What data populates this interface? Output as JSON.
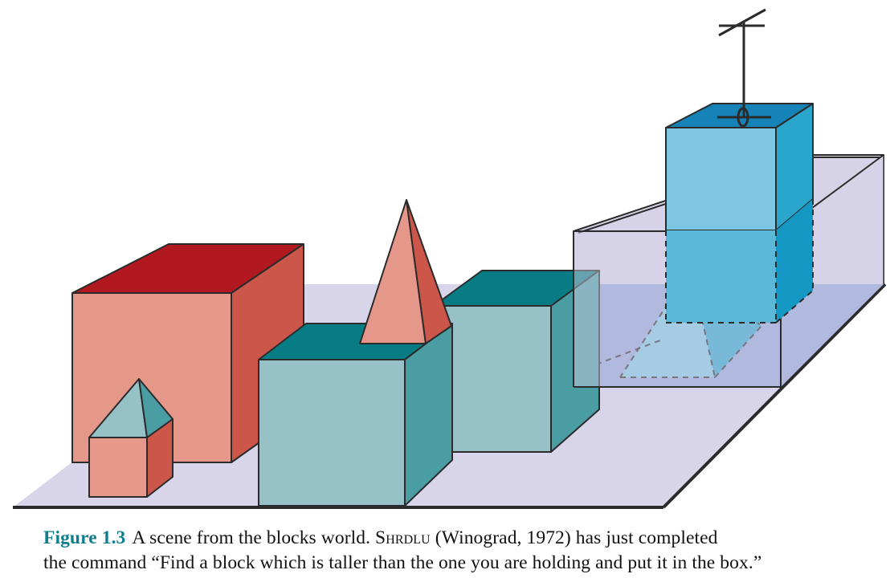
{
  "colors": {
    "floor": "#d8d5ea",
    "box_floor": "#94a4d6",
    "red_top": "#b2181f",
    "red_front": "#e5988a",
    "red_side": "#cd564b",
    "teal_top": "#087c84",
    "teal_front": "#96c1c7",
    "teal_side": "#4a9da3",
    "blue_top": "#1583b7",
    "blue_front": "#7ec6e1",
    "blue_side": "#2aa5cc",
    "outline": "#2b2b2b"
  },
  "caption": {
    "label": "Figure 1.3",
    "text_part1": "A scene from the blocks world. ",
    "program": "Shrdlu",
    "text_part2": " (Winograd, 1972) has just completed",
    "line2": "the command “Find a block which is taller than the one you are holding and put it in the box.”"
  }
}
